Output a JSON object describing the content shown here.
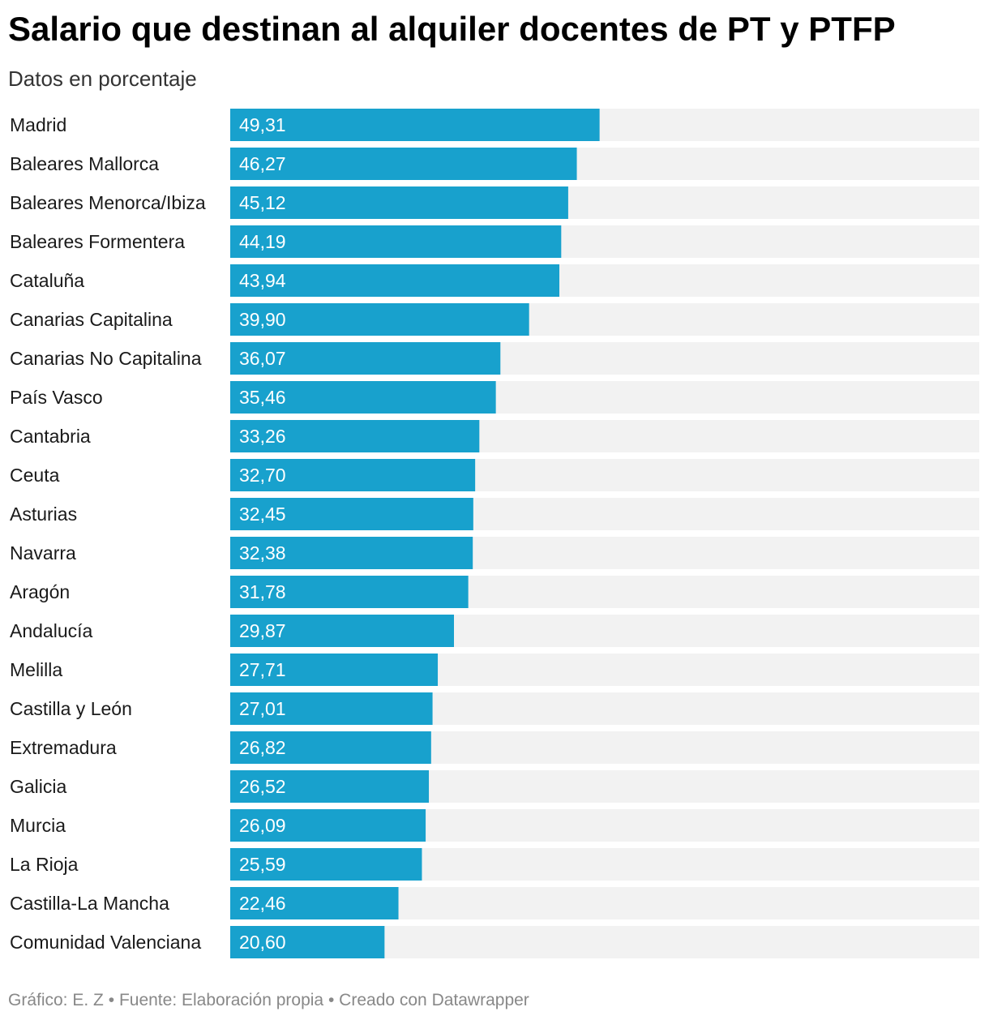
{
  "title": "Salario que destinan al alquiler docentes de PT y PTFP",
  "subtitle": "Datos en porcentaje",
  "footer": {
    "grafico_label": "Gráfico:",
    "grafico_value": "E. Z",
    "fuente_label": "Fuente:",
    "fuente_value": "Elaboración propia",
    "creado": "Creado con Datawrapper",
    "separator": "•"
  },
  "colors": {
    "bar": "#18a1cd",
    "track": "#f2f2f2",
    "bar_label": "#ffffff",
    "category_label": "#1a1a1a"
  },
  "chart_data": {
    "type": "bar",
    "orientation": "horizontal",
    "categories": [
      "Madrid",
      "Baleares Mallorca",
      "Baleares Menorca/Ibiza",
      "Baleares Formentera",
      "Cataluña",
      "Canarias Capitalina",
      "Canarias No Capitalina",
      "País Vasco",
      "Cantabria",
      "Ceuta",
      "Asturias",
      "Navarra",
      "Aragón",
      "Andalucía",
      "Melilla",
      "Castilla y León",
      "Extremadura",
      "Galicia",
      "Murcia",
      "La Rioja",
      "Castilla-La Mancha",
      "Comunidad Valenciana"
    ],
    "values": [
      49.31,
      46.27,
      45.12,
      44.19,
      43.94,
      39.9,
      36.07,
      35.46,
      33.26,
      32.7,
      32.45,
      32.38,
      31.78,
      29.87,
      27.71,
      27.01,
      26.82,
      26.52,
      26.09,
      25.59,
      22.46,
      20.6
    ],
    "value_labels": [
      "49,31",
      "46,27",
      "45,12",
      "44,19",
      "43,94",
      "39,90",
      "36,07",
      "35,46",
      "33,26",
      "32,70",
      "32,45",
      "32,38",
      "31,78",
      "29,87",
      "27,71",
      "27,01",
      "26,82",
      "26,52",
      "26,09",
      "25,59",
      "22,46",
      "20,60"
    ],
    "xlim": [
      0,
      100
    ],
    "grid": false,
    "legend": "none"
  }
}
